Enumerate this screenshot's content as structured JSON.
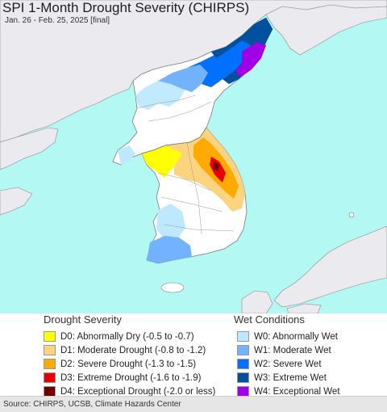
{
  "header": {
    "title": "SPI 1-Month Drought Severity (CHIRPS)",
    "subtitle": "Jan. 26 - Feb. 25, 2025 [final]"
  },
  "map": {
    "colors": {
      "ocean": "#b4f8f4",
      "foreign_land": "#eaeaef",
      "korea_land": "#ffffff",
      "border": "#7a7a7a"
    }
  },
  "legend": {
    "drought": {
      "title": "Drought Severity",
      "items": [
        {
          "label": "D0: Abnormally Dry (-0.5 to -0.7)",
          "color": "#ffff00"
        },
        {
          "label": "D1: Moderate Drought (-0.8 to -1.2)",
          "color": "#fcd37f"
        },
        {
          "label": "D2: Severe Drought (-1.3 to -1.5)",
          "color": "#ffaa00"
        },
        {
          "label": "D3: Extreme Drought (-1.6 to -1.9)",
          "color": "#e60000"
        },
        {
          "label": "D4: Exceptional Drought (-2.0 or less)",
          "color": "#730000"
        }
      ]
    },
    "wet": {
      "title": "Wet Conditions",
      "items": [
        {
          "label": "W0: Abnormally Wet",
          "color": "#bee8ff"
        },
        {
          "label": "W1: Moderate Wet",
          "color": "#73b2ff"
        },
        {
          "label": "W2: Severe Wet",
          "color": "#0070ff"
        },
        {
          "label": "W3: Extreme Wet",
          "color": "#0050a0"
        },
        {
          "label": "W4: Exceptional Wet",
          "color": "#a000e6"
        }
      ]
    }
  },
  "footer": {
    "source": "Source: CHIRPS, UCSB, Climate Hazards Center"
  }
}
